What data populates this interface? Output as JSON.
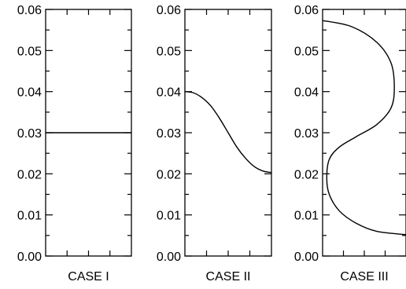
{
  "chart_data": [
    {
      "type": "line",
      "title": "",
      "xlabel": "CASE I",
      "ylabel": "",
      "ylim": [
        0,
        0.06
      ],
      "yticks": [
        "0.00",
        "0.01",
        "0.02",
        "0.03",
        "0.04",
        "0.05",
        "0.06"
      ],
      "series": [
        {
          "x": [
            0,
            1
          ],
          "y": [
            0.03,
            0.03
          ]
        }
      ]
    },
    {
      "type": "line",
      "title": "",
      "xlabel": "CASE II",
      "ylabel": "",
      "ylim": [
        0,
        0.06
      ],
      "yticks": [
        "0.00",
        "0.01",
        "0.02",
        "0.03",
        "0.04",
        "0.05",
        "0.06"
      ],
      "series": [
        {
          "x": [
            0,
            0.1,
            0.2,
            0.3,
            0.4,
            0.5,
            0.6,
            0.7,
            0.8,
            0.9,
            1.0
          ],
          "y": [
            0.04,
            0.0397,
            0.0385,
            0.0365,
            0.0335,
            0.03,
            0.0265,
            0.0238,
            0.0218,
            0.0207,
            0.0203
          ]
        }
      ]
    },
    {
      "type": "line",
      "title": "",
      "xlabel": "CASE III",
      "ylabel": "",
      "ylim": [
        0,
        0.06
      ],
      "yticks": [
        "0.00",
        "0.01",
        "0.02",
        "0.03",
        "0.04",
        "0.05",
        "0.06"
      ],
      "series": [
        {
          "x": [
            0,
            0.35,
            0.65,
            0.82,
            0.86,
            0.82,
            0.65,
            0.4,
            0.2,
            0.08,
            0.05,
            0.08,
            0.2,
            0.4,
            0.65,
            1.0
          ],
          "y": [
            0.0573,
            0.0558,
            0.052,
            0.047,
            0.041,
            0.036,
            0.032,
            0.029,
            0.0265,
            0.0235,
            0.019,
            0.015,
            0.011,
            0.008,
            0.006,
            0.0052
          ]
        }
      ]
    }
  ]
}
